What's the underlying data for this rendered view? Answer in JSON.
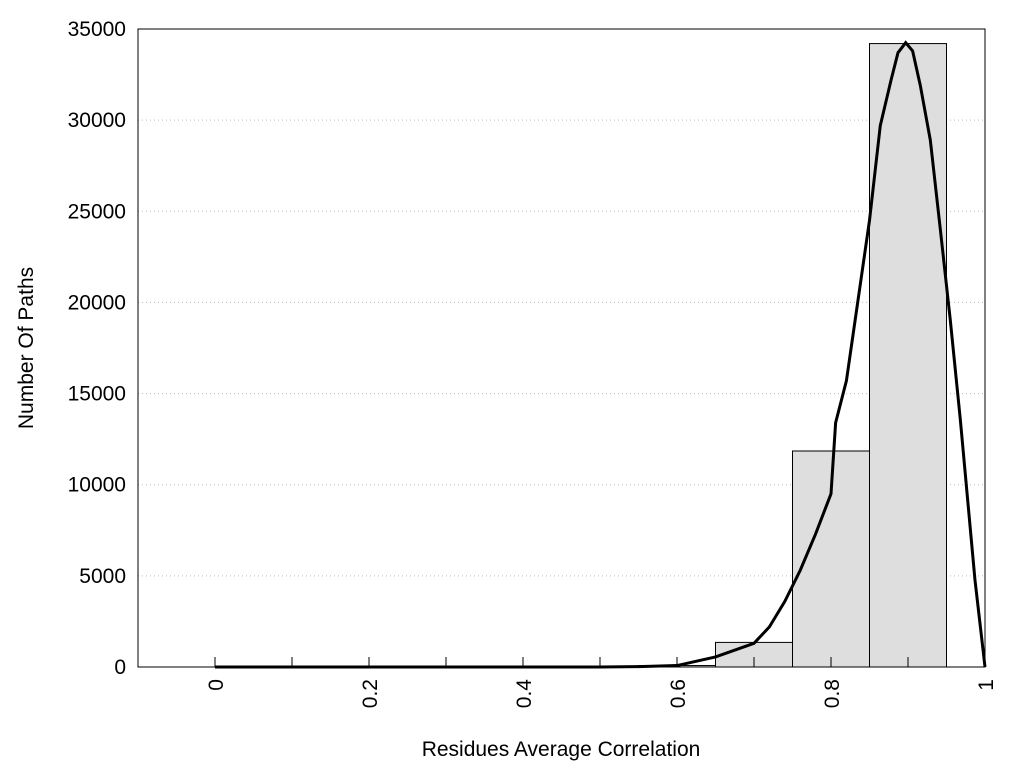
{
  "chart_data": {
    "type": "histogram",
    "xlabel": "Residues Average Correlation",
    "ylabel": "Number Of Paths",
    "bins": [
      -0.05,
      0.05,
      0.15,
      0.25,
      0.35,
      0.45,
      0.55,
      0.65,
      0.75,
      0.85,
      0.95
    ],
    "counts": [
      0,
      0,
      0,
      0,
      0,
      0,
      80,
      1350,
      11850,
      34200
    ],
    "color": "#dedede",
    "curve": {
      "x": [
        0,
        0.1,
        0.2,
        0.3,
        0.4,
        0.5,
        0.55,
        0.6,
        0.65,
        0.7,
        0.72,
        0.74,
        0.76,
        0.78,
        0.8,
        0.806,
        0.82,
        0.835,
        0.85,
        0.864,
        0.878,
        0.887,
        0.897,
        0.906,
        0.916,
        0.929,
        0.942,
        0.955,
        0.968,
        0.987,
        1.0
      ],
      "values": [
        0,
        0,
        0,
        0,
        0,
        0,
        20,
        80,
        550,
        1300,
        2200,
        3600,
        5300,
        7300,
        9500,
        13400,
        15700,
        20100,
        24500,
        29700,
        32200,
        33700,
        34250,
        33800,
        31900,
        28900,
        24000,
        19000,
        13550,
        4770,
        0
      ],
      "color": "#000000"
    },
    "xlim": [
      -0.1,
      1
    ],
    "xticks": [
      0,
      0.2,
      0.4,
      0.6,
      0.8,
      1
    ],
    "xminorticks": [
      0.1,
      0.3,
      0.5,
      0.7,
      0.9
    ],
    "ylim": [
      0,
      35000
    ],
    "yticks": [
      0,
      5000,
      10000,
      15000,
      20000,
      25000,
      30000,
      35000
    ],
    "grid": true
  }
}
